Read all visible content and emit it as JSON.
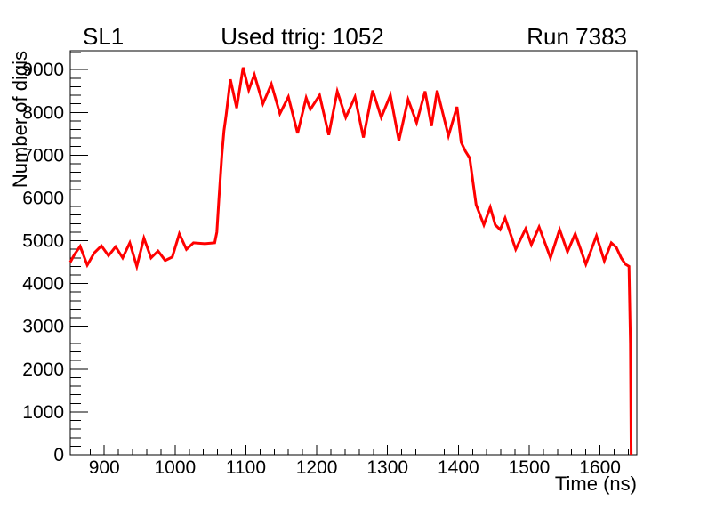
{
  "titles": {
    "left": "SL1",
    "center": "Used ttrig: 1052",
    "right": "Run 7383"
  },
  "colors": {
    "curve": "#ff0000",
    "axis": "#000000",
    "background": "#ffffff"
  },
  "chart_data": {
    "type": "line",
    "title": "Used ttrig: 1052",
    "subtitle_left": "SL1",
    "subtitle_right": "Run 7383",
    "xlabel": "Time (ns)",
    "ylabel": "Number of digis",
    "xlim": [
      852,
      1652
    ],
    "ylim": [
      0,
      9440
    ],
    "grid": false,
    "legend": false,
    "x_major_ticks": [
      900,
      1000,
      1100,
      1200,
      1300,
      1400,
      1500,
      1600
    ],
    "x_minor_step": 20,
    "y_major_ticks": [
      0,
      1000,
      2000,
      3000,
      4000,
      5000,
      6000,
      7000,
      8000,
      9000
    ],
    "y_minor_step": 200,
    "line_color": "#ff0000",
    "line_width": 3,
    "series": [
      {
        "name": "timebox",
        "x": [
          852,
          858,
          866,
          876,
          886,
          896,
          906,
          916,
          926,
          936,
          946,
          956,
          966,
          976,
          986,
          996,
          1006,
          1016,
          1026,
          1042,
          1056,
          1059,
          1062,
          1066,
          1069,
          1072,
          1078,
          1087,
          1096,
          1104,
          1112,
          1124,
          1136,
          1148,
          1160,
          1173,
          1185,
          1191,
          1204,
          1217,
          1229,
          1241,
          1254,
          1266,
          1279,
          1291,
          1304,
          1316,
          1329,
          1341,
          1353,
          1362,
          1370,
          1386,
          1398,
          1404,
          1410,
          1416,
          1421,
          1425,
          1436,
          1445,
          1452,
          1459,
          1466,
          1481,
          1495,
          1503,
          1514,
          1530,
          1543,
          1554,
          1565,
          1580,
          1595,
          1606,
          1616,
          1623,
          1630,
          1636,
          1641,
          1643,
          1644
        ],
        "y": [
          4500,
          4680,
          4870,
          4430,
          4720,
          4880,
          4650,
          4860,
          4600,
          4950,
          4400,
          5060,
          4600,
          4760,
          4540,
          4620,
          5160,
          4800,
          4950,
          4930,
          4950,
          5200,
          6000,
          6990,
          7570,
          7930,
          8770,
          8100,
          9050,
          8520,
          8880,
          8200,
          8660,
          7970,
          8360,
          7510,
          8340,
          8070,
          8400,
          7470,
          8490,
          7880,
          8360,
          7410,
          8510,
          7880,
          8400,
          7340,
          8300,
          7760,
          8490,
          7680,
          8510,
          7450,
          8130,
          7300,
          7090,
          6930,
          6320,
          5840,
          5370,
          5780,
          5370,
          5260,
          5530,
          4800,
          5280,
          4910,
          5320,
          4600,
          5260,
          4740,
          5160,
          4450,
          5115,
          4530,
          4950,
          4845,
          4595,
          4450,
          4400,
          2600,
          0
        ]
      }
    ]
  }
}
